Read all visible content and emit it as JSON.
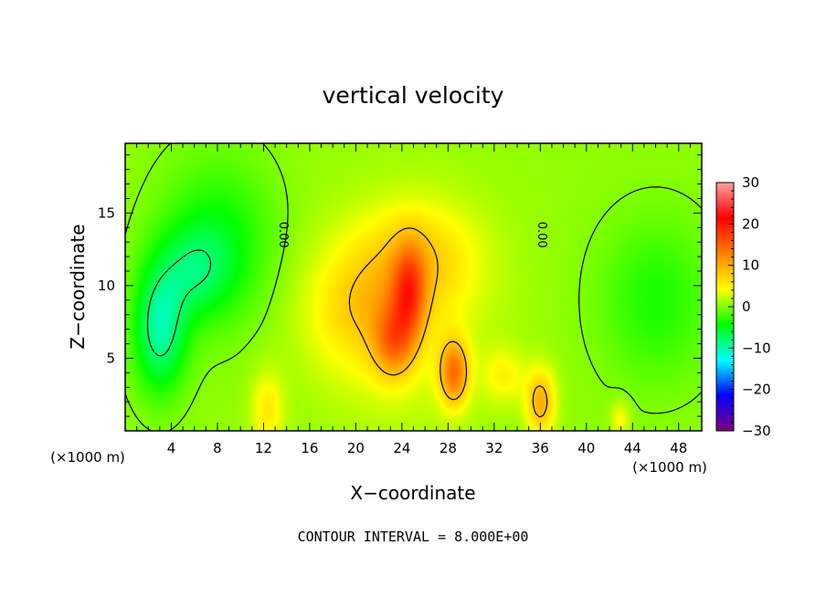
{
  "chart_data": {
    "type": "heatmap",
    "title": "vertical velocity",
    "xlabel": "X−coordinate",
    "ylabel": "Z−coordinate",
    "x_unit": "(×1000 m)",
    "x_unit_right": "(×1000 m)",
    "xlim": [
      0,
      50
    ],
    "ylim": [
      0,
      19.8
    ],
    "x_ticks": [
      4,
      8,
      12,
      16,
      20,
      24,
      28,
      32,
      36,
      40,
      44,
      48
    ],
    "x_tick_labels": [
      "4",
      "8",
      "12",
      "16",
      "20",
      "24",
      "28",
      "32",
      "36",
      "40",
      "44",
      "48"
    ],
    "y_ticks": [
      5,
      10,
      15
    ],
    "y_tick_labels": [
      "5",
      "10",
      "15"
    ],
    "colorbar": {
      "min": -30,
      "max": 30,
      "ticks": [
        30,
        20,
        10,
        0,
        -10,
        -20,
        -30
      ],
      "tick_labels": [
        "30",
        "20",
        "10",
        "0",
        "−10",
        "−20",
        "−30"
      ],
      "colors": [
        "#7f007f",
        "#0000ff",
        "#00ffff",
        "#00ff00",
        "#ffff00",
        "#ff8000",
        "#ff0000",
        "#ffa0a0"
      ]
    },
    "contour_interval": 8.0,
    "contour_levels": [
      -8,
      0,
      8
    ],
    "contour_labels": [
      "0.00",
      "0.00"
    ],
    "field_features": [
      {
        "kind": "updraft",
        "x": 24,
        "z": 8,
        "peak": 16
      },
      {
        "kind": "updraft",
        "x": 28.5,
        "z": 4,
        "peak": 12
      },
      {
        "kind": "updraft",
        "x": 36,
        "z": 2,
        "peak": 9
      },
      {
        "kind": "downdraft",
        "x": 3,
        "z": 7,
        "peak": -10
      },
      {
        "kind": "downdraft",
        "x": 8,
        "z": 13,
        "peak": -5
      },
      {
        "kind": "downdraft",
        "x": 46,
        "z": 9,
        "peak": -4
      }
    ],
    "footer": "CONTOUR INTERVAL = 8.000E+00"
  }
}
